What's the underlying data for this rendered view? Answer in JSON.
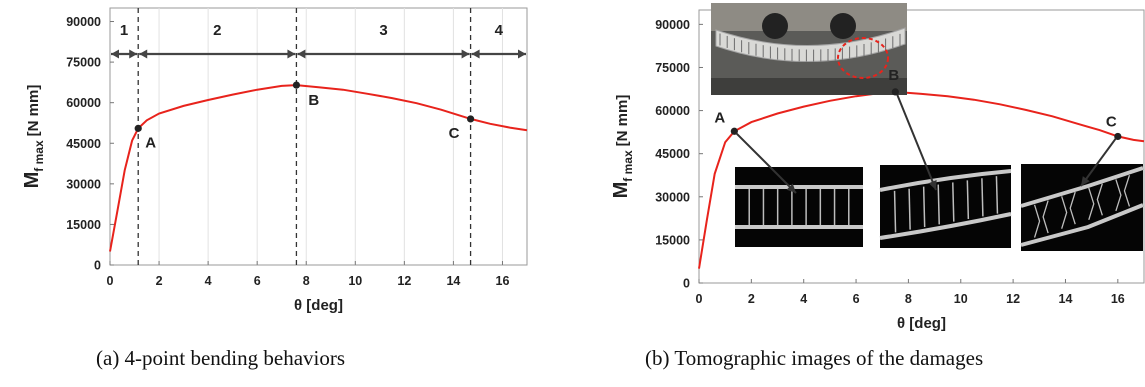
{
  "chart_data": [
    {
      "type": "line",
      "xlabel": "θ [deg]",
      "ylabel": "M",
      "ylabel_sub": "f max",
      "ylabel_unit": "[N mm]",
      "xlim": [
        0,
        17
      ],
      "ylim": [
        0,
        95000
      ],
      "x_ticks": [
        0,
        2,
        4,
        6,
        8,
        10,
        12,
        14,
        16
      ],
      "y_ticks": [
        0,
        15000,
        30000,
        45000,
        60000,
        75000,
        90000
      ],
      "grid": "vertical",
      "series": [
        {
          "color": "#e8231c",
          "x": [
            0,
            0.3,
            0.6,
            0.9,
            1.15,
            1.5,
            2,
            3,
            4,
            5,
            6,
            7,
            7.6,
            8.5,
            9.5,
            10.5,
            11.5,
            12.5,
            13.5,
            14.7,
            15.5,
            16.3,
            17
          ],
          "y": [
            5000,
            20000,
            35000,
            46000,
            50500,
            53500,
            56000,
            58800,
            61000,
            63000,
            64800,
            66200,
            66500,
            65700,
            64800,
            63300,
            61700,
            59800,
            57400,
            54000,
            52200,
            50800,
            49800
          ]
        }
      ],
      "points": [
        {
          "label": "A",
          "x": 1.15,
          "y": 50500
        },
        {
          "label": "B",
          "x": 7.6,
          "y": 66500
        },
        {
          "label": "C",
          "x": 14.7,
          "y": 54000
        }
      ],
      "regions": [
        {
          "label": "1",
          "from": 0,
          "to": 1.15
        },
        {
          "label": "2",
          "from": 1.15,
          "to": 7.6
        },
        {
          "label": "3",
          "from": 7.6,
          "to": 14.7
        },
        {
          "label": "4",
          "from": 14.7,
          "to": 17
        }
      ],
      "region_arrow_y": 78000,
      "caption": "(a) 4-point bending behaviors"
    },
    {
      "type": "line",
      "xlabel": "θ [deg]",
      "ylabel": "M",
      "ylabel_sub": "f max",
      "ylabel_unit": "[N mm]",
      "xlim": [
        0,
        17
      ],
      "ylim": [
        0,
        95000
      ],
      "x_ticks": [
        0,
        2,
        4,
        6,
        8,
        10,
        12,
        14,
        16
      ],
      "y_ticks": [
        0,
        15000,
        30000,
        45000,
        60000,
        75000,
        90000
      ],
      "grid": "none",
      "series": [
        {
          "color": "#e8231c",
          "x": [
            0,
            0.3,
            0.6,
            1.0,
            1.35,
            2,
            3,
            4,
            5,
            6,
            7,
            7.5,
            8.5,
            9.5,
            10.5,
            11.5,
            12.5,
            13.5,
            14.5,
            15.3,
            16,
            16.6,
            17
          ],
          "y": [
            5000,
            22000,
            38000,
            49000,
            52800,
            56000,
            59000,
            61400,
            63400,
            65000,
            66200,
            66500,
            65800,
            65000,
            63800,
            62200,
            60200,
            58000,
            55300,
            53200,
            51000,
            49800,
            49300
          ]
        }
      ],
      "points": [
        {
          "label": "A",
          "x": 1.35,
          "y": 52800
        },
        {
          "label": "B",
          "x": 7.5,
          "y": 66500
        },
        {
          "label": "C",
          "x": 16.0,
          "y": 51000
        }
      ],
      "images": [
        "photo-4-point-bending-test",
        "tomography-slice-A",
        "tomography-slice-B",
        "tomography-slice-C"
      ],
      "caption": "(b) Tomographic images of the damages"
    }
  ]
}
